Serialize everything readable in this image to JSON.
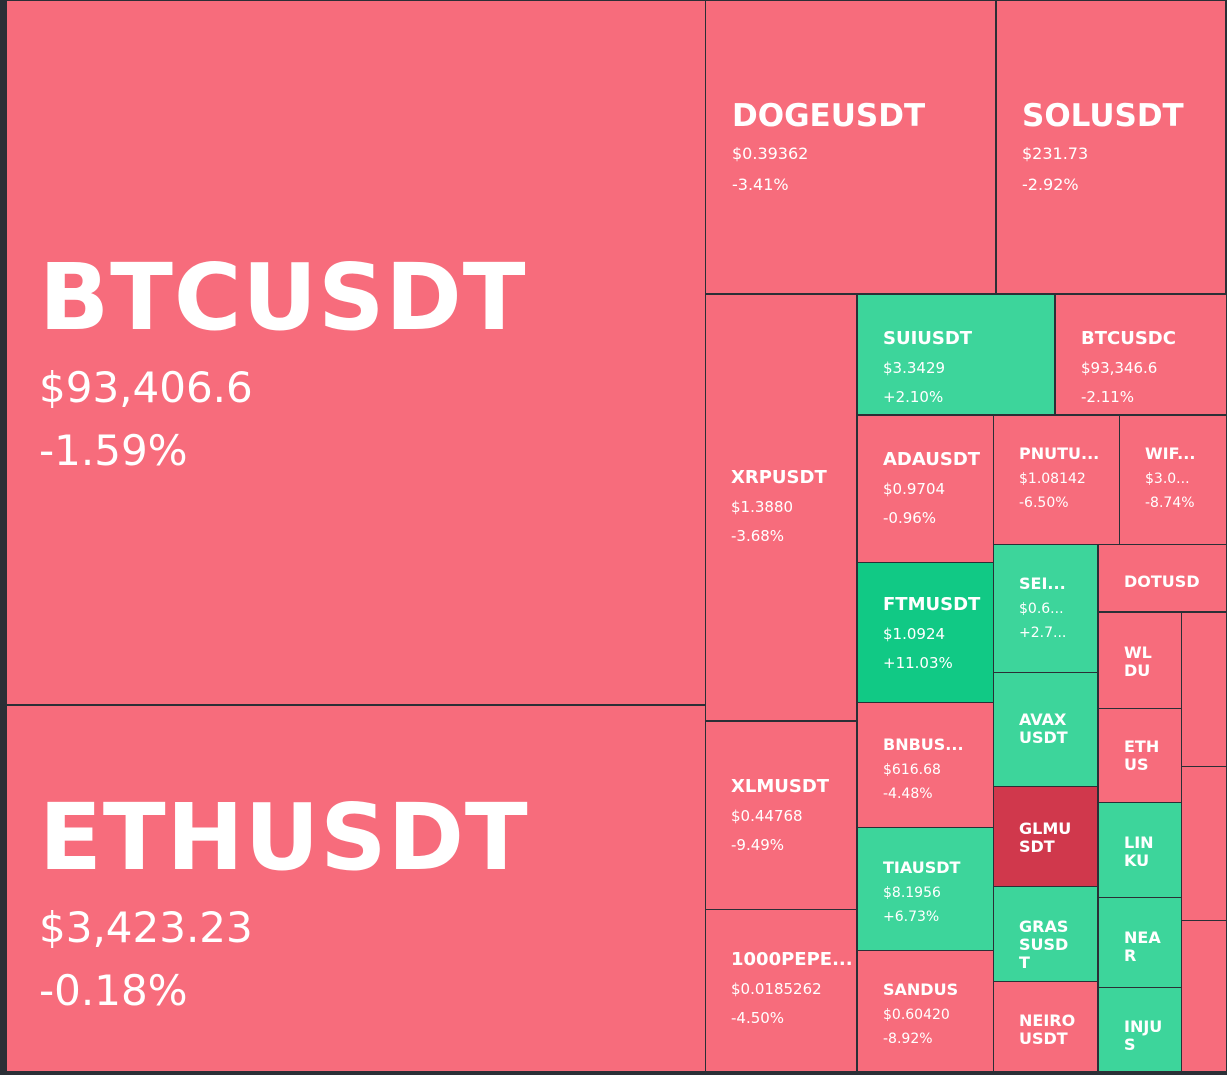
{
  "tiles": [
    {
      "id": "btcusdt",
      "symbol": "BTCUSDT",
      "price": "$93,406.6",
      "change": "-1.59%",
      "color": "red",
      "size": "xl"
    },
    {
      "id": "ethusdt",
      "symbol": "ETHUSDT",
      "price": "$3,423.23",
      "change": "-0.18%",
      "color": "red",
      "size": "xl"
    },
    {
      "id": "dogeusdt",
      "symbol": "DOGEUSDT",
      "price": "$0.39362",
      "change": "-3.41%",
      "color": "red",
      "size": "l"
    },
    {
      "id": "solusdt",
      "symbol": "SOLUSDT",
      "price": "$231.73",
      "change": "-2.92%",
      "color": "red",
      "size": "l"
    },
    {
      "id": "xrpusdt",
      "symbol": "XRPUSDT",
      "price": "$1.3880",
      "change": "-3.68%",
      "color": "red",
      "size": "m"
    },
    {
      "id": "xlmusdt",
      "symbol": "XLMUSDT",
      "price": "$0.44768",
      "change": "-9.49%",
      "color": "red",
      "size": "m"
    },
    {
      "id": "1000pepeusdt",
      "symbol": "1000PEPE...",
      "price": "$0.0185262",
      "change": "-4.50%",
      "color": "red",
      "size": "m"
    },
    {
      "id": "suiusdt",
      "symbol": "SUIUSDT",
      "price": "$3.3429",
      "change": "+2.10%",
      "color": "green",
      "size": "m"
    },
    {
      "id": "btcusdc",
      "symbol": "BTCUSDC",
      "price": "$93,346.6",
      "change": "-2.11%",
      "color": "red",
      "size": "m"
    },
    {
      "id": "adausdt",
      "symbol": "ADAUSDT",
      "price": "$0.9704",
      "change": "-0.96%",
      "color": "red",
      "size": "m"
    },
    {
      "id": "pnutusdt",
      "symbol": "PNUTU...",
      "price": "$1.08142",
      "change": "-6.50%",
      "color": "red",
      "size": "s"
    },
    {
      "id": "wifusdt",
      "symbol": "WIF...",
      "price": "$3.0...",
      "change": "-8.74%",
      "color": "red",
      "size": "s"
    },
    {
      "id": "ftmusdt",
      "symbol": "FTMUSDT",
      "price": "$1.0924",
      "change": "+11.03%",
      "color": "bright",
      "size": "m"
    },
    {
      "id": "seiusdt",
      "symbol": "SEI...",
      "price": "$0.6...",
      "change": "+2.7...",
      "color": "green",
      "size": "s"
    },
    {
      "id": "dotusdt",
      "symbol": "DOTUSD",
      "price": "",
      "change": "",
      "color": "red",
      "size": "t"
    },
    {
      "id": "bnbusdt",
      "symbol": "BNBUS...",
      "price": "$616.68",
      "change": "-4.48%",
      "color": "red",
      "size": "s"
    },
    {
      "id": "avaxusdt",
      "symbol": "AVAXUSDT",
      "price": "",
      "change": "",
      "color": "green",
      "size": "t",
      "wrap": true
    },
    {
      "id": "wldusdt",
      "symbol": "WLDU",
      "price": "",
      "change": "",
      "color": "red",
      "size": "t",
      "wrap": true
    },
    {
      "id": "ethusdc",
      "symbol": "ETHUS",
      "price": "",
      "change": "",
      "color": "red",
      "size": "t",
      "wrap": true
    },
    {
      "id": "glmusdt",
      "symbol": "GLMUSDT",
      "price": "",
      "change": "",
      "color": "crimson",
      "size": "t",
      "wrap": true
    },
    {
      "id": "tiausdt",
      "symbol": "TIAUSDT",
      "price": "$8.1956",
      "change": "+6.73%",
      "color": "green",
      "size": "s"
    },
    {
      "id": "linkusdt",
      "symbol": "LINKU",
      "price": "",
      "change": "",
      "color": "green",
      "size": "t",
      "wrap": true
    },
    {
      "id": "grassusdt",
      "symbol": "GRASSUSDT",
      "price": "",
      "change": "",
      "color": "green",
      "size": "t",
      "wrap": true
    },
    {
      "id": "nearusdt",
      "symbol": "NEAR",
      "price": "",
      "change": "",
      "color": "green",
      "size": "t",
      "wrap": true
    },
    {
      "id": "sandusdt",
      "symbol": "SANDUS",
      "price": "$0.60420",
      "change": "-8.92%",
      "color": "red",
      "size": "s"
    },
    {
      "id": "neirousdt",
      "symbol": "NEIROUSDT",
      "price": "",
      "change": "",
      "color": "red",
      "size": "t",
      "wrap": true
    },
    {
      "id": "injusdt",
      "symbol": "INJUS",
      "price": "",
      "change": "",
      "color": "green",
      "size": "t",
      "wrap": true
    },
    {
      "id": "blank-1",
      "symbol": "",
      "price": "",
      "change": "",
      "color": "red",
      "size": "t"
    },
    {
      "id": "blank-2",
      "symbol": "",
      "price": "",
      "change": "",
      "color": "red",
      "size": "t"
    },
    {
      "id": "blank-3",
      "symbol": "",
      "price": "",
      "change": "",
      "color": "red",
      "size": "t"
    },
    {
      "id": "blank-4",
      "symbol": "",
      "price": "",
      "change": "",
      "color": "red",
      "size": "t"
    }
  ]
}
